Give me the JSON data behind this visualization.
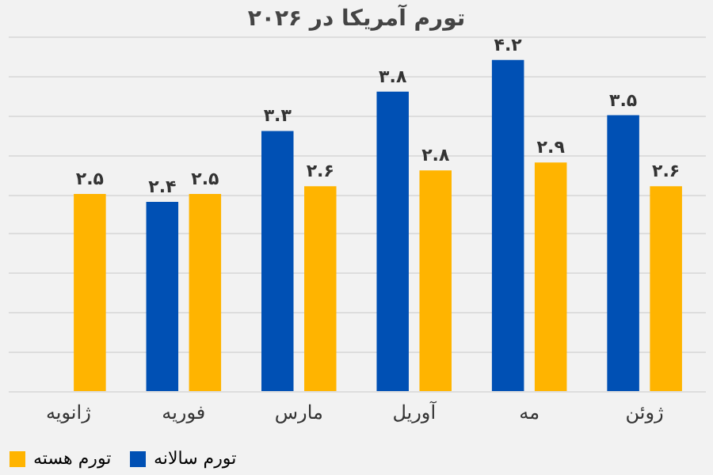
{
  "chart_data": {
    "type": "bar",
    "title": "تورم آمریکا در ۲۰۲۶",
    "categories": [
      "ژانویه",
      "فوریه",
      "مارس",
      "آوریل",
      "مه",
      "ژوئن"
    ],
    "series": [
      {
        "name": "تورم سالانه",
        "color": "#0050b4",
        "values": [
          null,
          2.4,
          3.3,
          3.8,
          4.2,
          3.5
        ],
        "value_labels": [
          null,
          "۲.۴",
          "۳.۳",
          "۳.۸",
          "۴.۲",
          "۳.۵"
        ]
      },
      {
        "name": "تورم هسته",
        "color": "#ffb400",
        "values": [
          2.5,
          2.5,
          2.6,
          2.8,
          2.9,
          2.6
        ],
        "value_labels": [
          "۲.۵",
          "۲.۵",
          "۲.۶",
          "۲.۸",
          "۲.۹",
          "۲.۶"
        ]
      }
    ],
    "tick_labels": "x",
    "grid": "y",
    "legend": "bottom"
  }
}
